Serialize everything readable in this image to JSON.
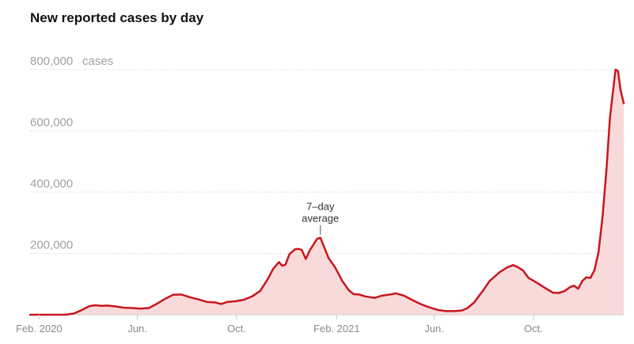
{
  "chart_data": {
    "type": "area",
    "title": "New reported cases by day",
    "y_unit_label": "cases",
    "ylim": [
      0,
      800000
    ],
    "y_ticks": [
      {
        "value": 800000,
        "label": "800,000"
      },
      {
        "value": 600000,
        "label": "600,000"
      },
      {
        "value": 400000,
        "label": "400,000"
      },
      {
        "value": 200000,
        "label": "200,000"
      }
    ],
    "x_ticks": [
      {
        "date": "2020-02-01",
        "label": "Feb. 2020"
      },
      {
        "date": "2020-06-01",
        "label": "Jun."
      },
      {
        "date": "2020-10-01",
        "label": "Oct."
      },
      {
        "date": "2021-02-01",
        "label": "Feb. 2021"
      },
      {
        "date": "2021-06-01",
        "label": "Jun."
      },
      {
        "date": "2021-10-01",
        "label": "Oct."
      }
    ],
    "xlim": [
      "2020-01-21",
      "2022-01-20"
    ],
    "grid": true,
    "colors": {
      "line": "#c8161d",
      "fill": "#f9dada",
      "grid": "#e0e0e0",
      "axis": "#cccccc"
    },
    "annotation": {
      "line1": "7–day",
      "line2": "average",
      "date": "2021-01-12",
      "value": 251000
    },
    "series": [
      {
        "points": [
          [
            "2020-01-21",
            0
          ],
          [
            "2020-03-05",
            200
          ],
          [
            "2020-03-15",
            4000
          ],
          [
            "2020-03-25",
            16000
          ],
          [
            "2020-04-03",
            28000
          ],
          [
            "2020-04-10",
            31000
          ],
          [
            "2020-04-18",
            29000
          ],
          [
            "2020-04-25",
            30000
          ],
          [
            "2020-05-05",
            27000
          ],
          [
            "2020-05-15",
            23000
          ],
          [
            "2020-05-25",
            22000
          ],
          [
            "2020-06-05",
            20000
          ],
          [
            "2020-06-15",
            22000
          ],
          [
            "2020-06-25",
            36000
          ],
          [
            "2020-07-05",
            52000
          ],
          [
            "2020-07-15",
            65000
          ],
          [
            "2020-07-25",
            66000
          ],
          [
            "2020-08-05",
            57000
          ],
          [
            "2020-08-15",
            50000
          ],
          [
            "2020-08-25",
            42000
          ],
          [
            "2020-09-05",
            40000
          ],
          [
            "2020-09-12",
            35000
          ],
          [
            "2020-09-20",
            42000
          ],
          [
            "2020-09-30",
            44000
          ],
          [
            "2020-10-10",
            49000
          ],
          [
            "2020-10-20",
            60000
          ],
          [
            "2020-10-30",
            78000
          ],
          [
            "2020-11-08",
            115000
          ],
          [
            "2020-11-15",
            150000
          ],
          [
            "2020-11-22",
            172000
          ],
          [
            "2020-11-26",
            160000
          ],
          [
            "2020-11-30",
            163000
          ],
          [
            "2020-12-05",
            198000
          ],
          [
            "2020-12-12",
            214000
          ],
          [
            "2020-12-16",
            215000
          ],
          [
            "2020-12-20",
            212000
          ],
          [
            "2020-12-25",
            182000
          ],
          [
            "2020-12-30",
            210000
          ],
          [
            "2021-01-08",
            248000
          ],
          [
            "2021-01-12",
            251000
          ],
          [
            "2021-01-16",
            225000
          ],
          [
            "2021-01-22",
            185000
          ],
          [
            "2021-01-30",
            155000
          ],
          [
            "2021-02-08",
            110000
          ],
          [
            "2021-02-16",
            80000
          ],
          [
            "2021-02-22",
            67000
          ],
          [
            "2021-03-01",
            66000
          ],
          [
            "2021-03-08",
            60000
          ],
          [
            "2021-03-20",
            55000
          ],
          [
            "2021-03-28",
            62000
          ],
          [
            "2021-04-08",
            66000
          ],
          [
            "2021-04-15",
            70000
          ],
          [
            "2021-04-25",
            62000
          ],
          [
            "2021-05-05",
            48000
          ],
          [
            "2021-05-15",
            35000
          ],
          [
            "2021-05-25",
            25000
          ],
          [
            "2021-06-05",
            16000
          ],
          [
            "2021-06-15",
            12000
          ],
          [
            "2021-06-25",
            12000
          ],
          [
            "2021-07-05",
            14000
          ],
          [
            "2021-07-12",
            22000
          ],
          [
            "2021-07-20",
            40000
          ],
          [
            "2021-07-30",
            75000
          ],
          [
            "2021-08-08",
            110000
          ],
          [
            "2021-08-20",
            138000
          ],
          [
            "2021-08-30",
            155000
          ],
          [
            "2021-09-06",
            162000
          ],
          [
            "2021-09-12",
            155000
          ],
          [
            "2021-09-18",
            145000
          ],
          [
            "2021-09-25",
            120000
          ],
          [
            "2021-10-05",
            105000
          ],
          [
            "2021-10-15",
            88000
          ],
          [
            "2021-10-25",
            72000
          ],
          [
            "2021-11-01",
            71000
          ],
          [
            "2021-11-08",
            77000
          ],
          [
            "2021-11-15",
            90000
          ],
          [
            "2021-11-20",
            95000
          ],
          [
            "2021-11-25",
            85000
          ],
          [
            "2021-11-30",
            110000
          ],
          [
            "2021-12-05",
            122000
          ],
          [
            "2021-12-10",
            120000
          ],
          [
            "2021-12-15",
            145000
          ],
          [
            "2021-12-20",
            205000
          ],
          [
            "2021-12-25",
            320000
          ],
          [
            "2021-12-30",
            480000
          ],
          [
            "2022-01-03",
            640000
          ],
          [
            "2022-01-06",
            710000
          ],
          [
            "2022-01-10",
            800000
          ],
          [
            "2022-01-13",
            795000
          ],
          [
            "2022-01-16",
            735000
          ],
          [
            "2022-01-20",
            690000
          ]
        ]
      }
    ]
  }
}
